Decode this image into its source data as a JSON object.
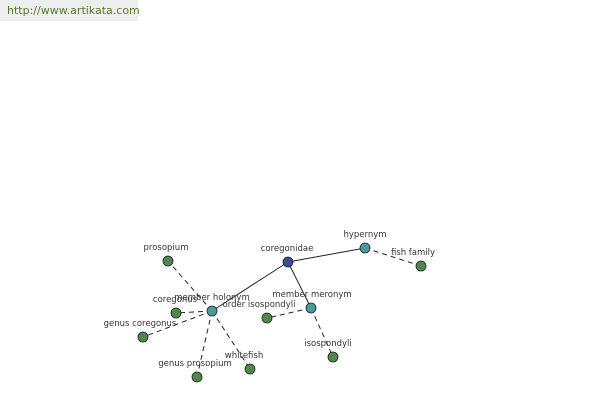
{
  "header": {
    "url": "http://www.artikata.com"
  },
  "nodes": [
    {
      "label": "coregonidae"
    },
    {
      "label": "hypernym"
    },
    {
      "label": "fish family"
    },
    {
      "label": "member holonym"
    },
    {
      "label": "member meronym"
    },
    {
      "label": "prosopium"
    },
    {
      "label": "coregonus"
    },
    {
      "label": "genus coregonus"
    },
    {
      "label": "genus prosopium"
    },
    {
      "label": "whitefish"
    },
    {
      "label": "order isospondyli"
    },
    {
      "label": "isospondyli"
    }
  ]
}
